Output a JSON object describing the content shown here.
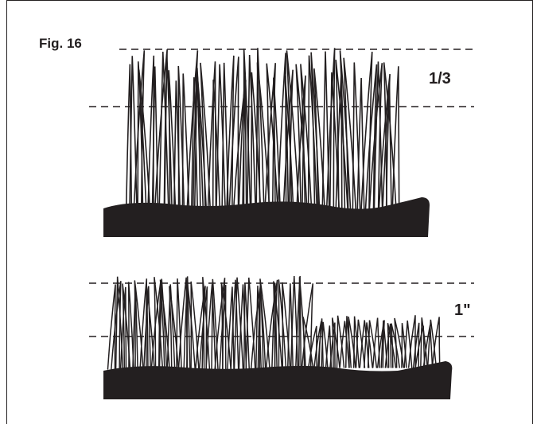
{
  "figure": {
    "label": "Fig. 16"
  },
  "top_panel": {
    "annotation": "1/3",
    "description_name": "grass-before-cut"
  },
  "bottom_panel": {
    "annotation": "1\"",
    "description_name": "grass-after-cut"
  },
  "colors": {
    "ink": "#231f20",
    "background": "#ffffff"
  }
}
